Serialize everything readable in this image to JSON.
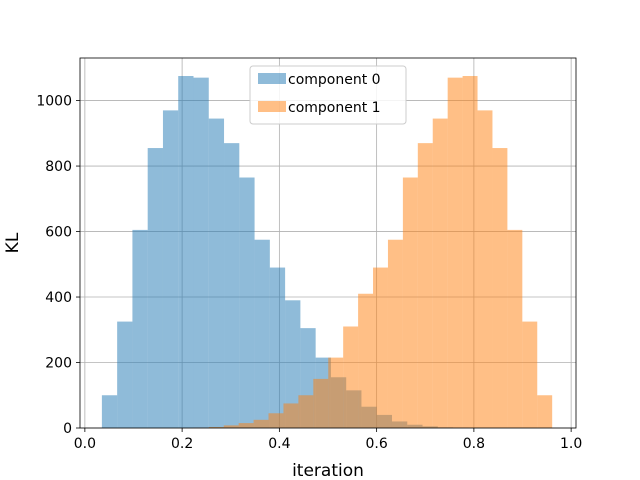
{
  "chart_data": {
    "type": "bar",
    "subtype": "overlaid-histogram",
    "title": "",
    "xlabel": "iteration",
    "ylabel": "KL",
    "xlim": [
      -0.01,
      1.01
    ],
    "ylim": [
      0,
      1130
    ],
    "xticks": [
      "0.0",
      "0.2",
      "0.4",
      "0.6",
      "0.8",
      "1.0"
    ],
    "xtick_values": [
      0.0,
      0.2,
      0.4,
      0.6,
      0.8,
      1.0
    ],
    "yticks": [
      "0",
      "200",
      "400",
      "600",
      "800",
      "1000"
    ],
    "ytick_values": [
      0,
      200,
      400,
      600,
      800,
      1000
    ],
    "grid": true,
    "legend_position": "top-center",
    "bar_alpha": 0.5,
    "series": [
      {
        "name": "component 0",
        "color": "#1f77b4",
        "bin_start": 0.035,
        "bin_width": 0.0314,
        "values": [
          100,
          325,
          605,
          855,
          970,
          1075,
          1070,
          945,
          870,
          765,
          575,
          490,
          390,
          305,
          215,
          155,
          115,
          65,
          40,
          20,
          10,
          5,
          2,
          1,
          0,
          0,
          0,
          0,
          0,
          0
        ]
      },
      {
        "name": "component 1",
        "color": "#ff7f0e",
        "bin_start": 0.04,
        "bin_width": 0.0307,
        "values": [
          0,
          0,
          0,
          0,
          0,
          0,
          1,
          3,
          8,
          15,
          25,
          45,
          75,
          100,
          150,
          215,
          310,
          410,
          490,
          575,
          765,
          870,
          945,
          1070,
          1075,
          970,
          855,
          605,
          325,
          100
        ]
      }
    ]
  }
}
